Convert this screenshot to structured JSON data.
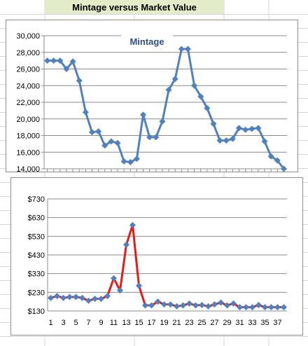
{
  "sheet": {
    "title": "Mintage versus Market Value",
    "title_bg": "#e3ecc8"
  },
  "chart_data": [
    {
      "type": "line",
      "title": "Mintage",
      "xlabel": "",
      "ylabel": "",
      "ylim": [
        14000,
        30000
      ],
      "ytick_step": 2000,
      "ytick_labels": [
        "14,000",
        "16,000",
        "18,000",
        "20,000",
        "22,000",
        "24,000",
        "26,000",
        "28,000",
        "30,000"
      ],
      "grid": true,
      "x": [
        1,
        2,
        3,
        4,
        5,
        6,
        7,
        8,
        9,
        10,
        11,
        12,
        13,
        14,
        15,
        16,
        17,
        18,
        19,
        20,
        21,
        22,
        23,
        24,
        25,
        26,
        27,
        28,
        29,
        30,
        31,
        32,
        33,
        34,
        35,
        36,
        37,
        38
      ],
      "series": [
        {
          "color": "#4f81bd",
          "values": [
            27000,
            27000,
            27000,
            26000,
            26900,
            24600,
            20800,
            18400,
            18500,
            16800,
            17300,
            17100,
            14900,
            14800,
            15200,
            20500,
            17800,
            17800,
            19700,
            23500,
            24800,
            28400,
            28400,
            24000,
            22700,
            21300,
            19400,
            17400,
            17400,
            17600,
            18900,
            18700,
            18800,
            18900,
            17300,
            15500,
            15000,
            14000
          ]
        }
      ]
    },
    {
      "type": "line",
      "title": "",
      "xlabel": "",
      "ylabel": "",
      "ylim": [
        130,
        730
      ],
      "ytick_labels": [
        "$130",
        "$230",
        "$330",
        "$430",
        "$530",
        "$630",
        "$730"
      ],
      "xtick_labels": [
        "1",
        "3",
        "5",
        "7",
        "9",
        "11",
        "13",
        "15",
        "17",
        "19",
        "21",
        "23",
        "25",
        "27",
        "29",
        "31",
        "33",
        "35",
        "37"
      ],
      "grid": true,
      "x": [
        1,
        2,
        3,
        4,
        5,
        6,
        7,
        8,
        9,
        10,
        11,
        12,
        13,
        14,
        15,
        16,
        17,
        18,
        19,
        20,
        21,
        22,
        23,
        24,
        25,
        26,
        27,
        28,
        29,
        30,
        31,
        32,
        33,
        34,
        35,
        36,
        37,
        38
      ],
      "line_color": "#e31b1b",
      "marker_color": "#4f81bd",
      "series": [
        {
          "values": [
            200,
            210,
            200,
            205,
            205,
            200,
            185,
            195,
            195,
            210,
            305,
            240,
            485,
            590,
            265,
            160,
            160,
            180,
            165,
            165,
            155,
            160,
            170,
            160,
            162,
            155,
            165,
            175,
            160,
            170,
            150,
            150,
            150,
            162,
            150,
            150,
            150,
            150
          ]
        }
      ]
    }
  ]
}
